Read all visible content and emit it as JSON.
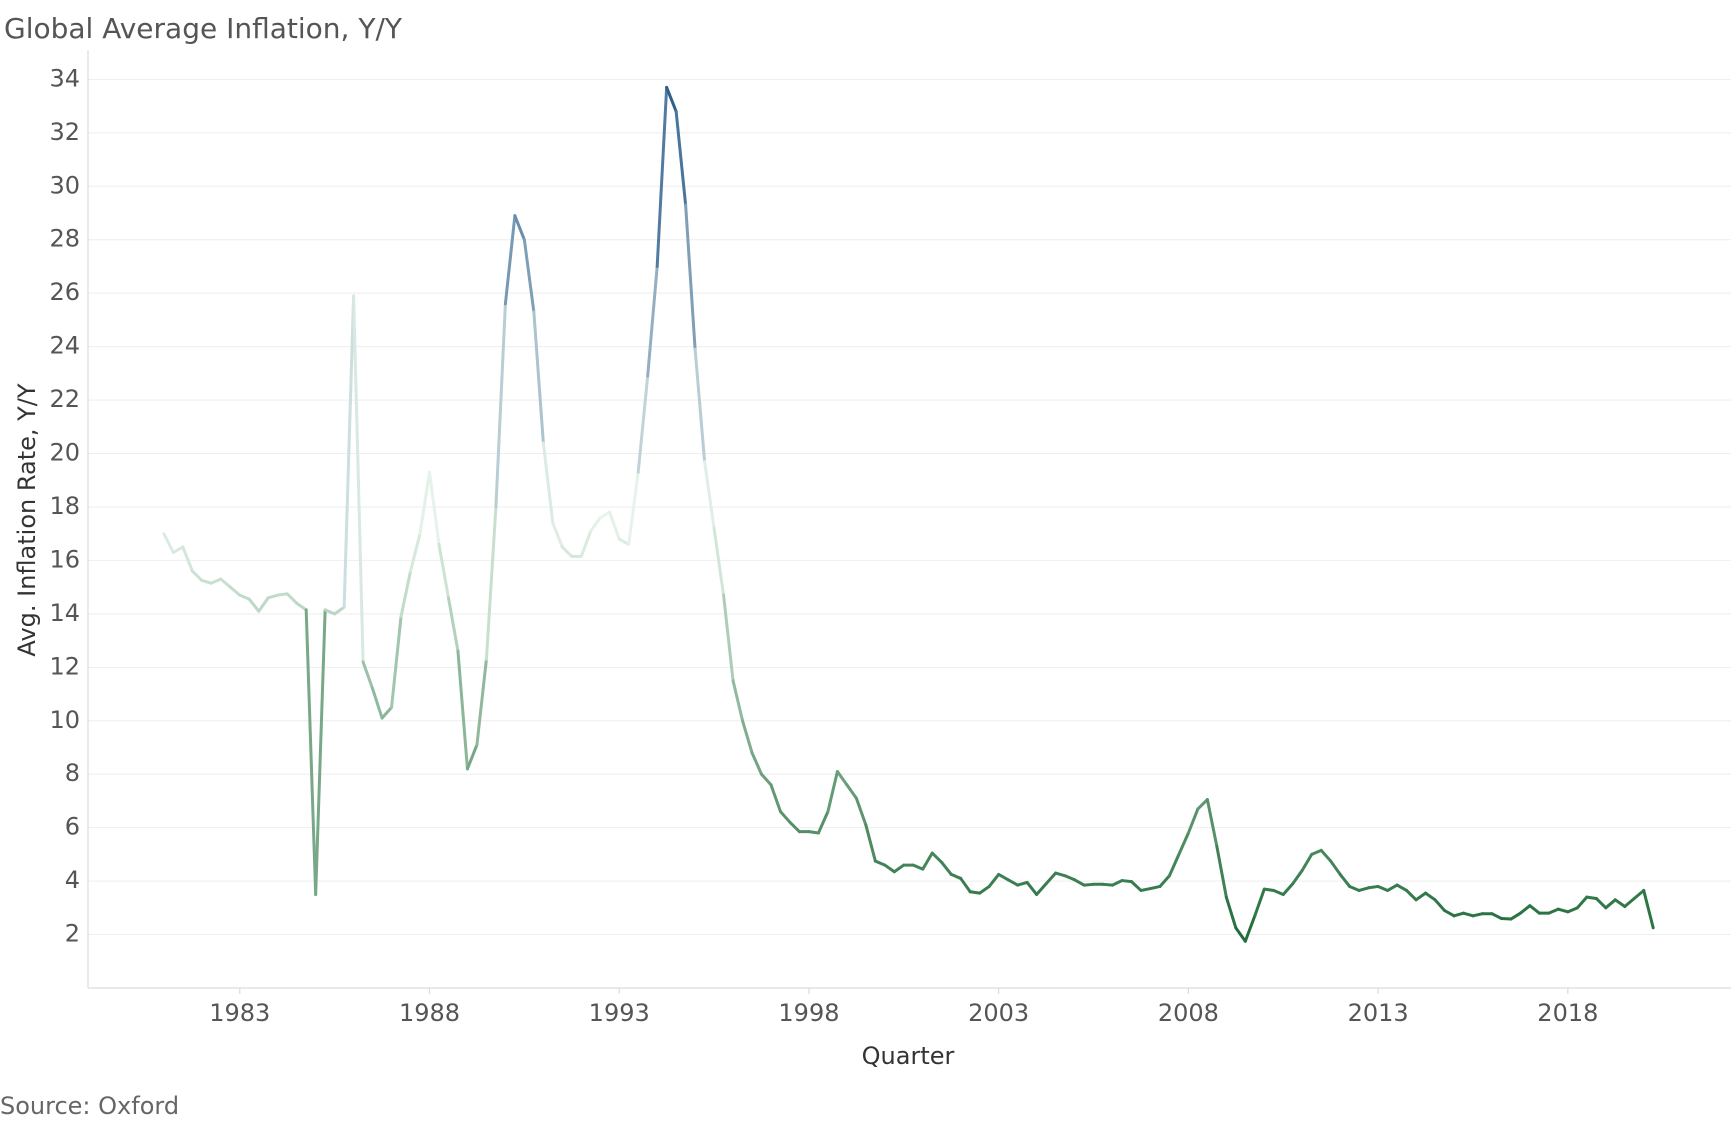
{
  "chart_data": {
    "type": "line",
    "title": "Global Average Inflation, Y/Y",
    "x_label": "Quarter",
    "y_label": "Avg. Inflation Rate, Y/Y",
    "source": "Source: Oxford",
    "x": [
      1981,
      1981.25,
      1981.5,
      1981.75,
      1982,
      1982.25,
      1982.5,
      1982.75,
      1983,
      1983.25,
      1983.5,
      1983.75,
      1984,
      1984.25,
      1984.5,
      1984.75,
      1985,
      1985.25,
      1985.5,
      1985.75,
      1986,
      1986.25,
      1986.5,
      1986.75,
      1987,
      1987.25,
      1987.5,
      1987.75,
      1988,
      1988.25,
      1988.5,
      1988.75,
      1989,
      1989.25,
      1989.5,
      1989.75,
      1990,
      1990.25,
      1990.5,
      1990.75,
      1991,
      1991.25,
      1991.5,
      1991.75,
      1992,
      1992.25,
      1992.5,
      1992.75,
      1993,
      1993.25,
      1993.5,
      1993.75,
      1994,
      1994.25,
      1994.5,
      1994.75,
      1995,
      1995.25,
      1995.5,
      1995.75,
      1996,
      1996.25,
      1996.5,
      1996.75,
      1997,
      1997.25,
      1997.5,
      1997.75,
      1998,
      1998.25,
      1998.5,
      1998.75,
      1999,
      1999.25,
      1999.5,
      1999.75,
      2000,
      2000.25,
      2000.5,
      2000.75,
      2001,
      2001.25,
      2001.5,
      2001.75,
      2002,
      2002.25,
      2002.5,
      2002.75,
      2003,
      2003.25,
      2003.5,
      2003.75,
      2004,
      2004.25,
      2004.5,
      2004.75,
      2005,
      2005.25,
      2005.5,
      2005.75,
      2006,
      2006.25,
      2006.5,
      2006.75,
      2007,
      2007.25,
      2007.5,
      2007.75,
      2008,
      2008.25,
      2008.5,
      2008.75,
      2009,
      2009.25,
      2009.5,
      2009.75,
      2010,
      2010.25,
      2010.5,
      2010.75,
      2011,
      2011.25,
      2011.5,
      2011.75,
      2012,
      2012.25,
      2012.5,
      2012.75,
      2013,
      2013.25,
      2013.5,
      2013.75,
      2014,
      2014.25,
      2014.5,
      2014.75,
      2015,
      2015.25,
      2015.5,
      2015.75,
      2016,
      2016.25,
      2016.5,
      2016.75,
      2017,
      2017.25,
      2017.5,
      2017.75,
      2018,
      2018.25,
      2018.5,
      2018.75,
      2019,
      2019.25,
      2019.5,
      2019.75,
      2020,
      2020.25
    ],
    "values": [
      17.0,
      16.3,
      16.5,
      15.6,
      15.25,
      15.15,
      15.3,
      15.0,
      14.7,
      14.55,
      14.1,
      14.6,
      14.7,
      14.75,
      14.4,
      14.15,
      3.5,
      14.15,
      14.0,
      14.25,
      25.9,
      12.2,
      11.2,
      10.1,
      10.5,
      13.9,
      15.6,
      17.0,
      19.3,
      16.6,
      14.6,
      12.6,
      8.2,
      9.1,
      12.3,
      18.0,
      25.6,
      28.9,
      28.0,
      25.3,
      20.4,
      17.4,
      16.5,
      16.15,
      16.15,
      17.1,
      17.6,
      17.8,
      16.8,
      16.6,
      19.3,
      22.9,
      27.0,
      33.7,
      32.8,
      29.3,
      23.9,
      19.7,
      17.2,
      14.7,
      11.5,
      10.0,
      8.8,
      8.0,
      7.6,
      6.6,
      6.2,
      5.85,
      5.85,
      5.8,
      6.6,
      8.1,
      7.6,
      7.1,
      6.1,
      4.75,
      4.6,
      4.35,
      4.6,
      4.6,
      4.45,
      5.05,
      4.7,
      4.25,
      4.1,
      3.6,
      3.55,
      3.8,
      4.25,
      4.05,
      3.85,
      3.95,
      3.5,
      3.9,
      4.3,
      4.2,
      4.05,
      3.85,
      3.88,
      3.88,
      3.85,
      4.02,
      3.98,
      3.65,
      3.72,
      3.8,
      4.2,
      5.0,
      5.8,
      6.7,
      7.05,
      5.3,
      3.4,
      2.25,
      1.75,
      2.7,
      3.7,
      3.65,
      3.5,
      3.9,
      4.4,
      5.0,
      5.15,
      4.75,
      4.25,
      3.8,
      3.65,
      3.75,
      3.8,
      3.65,
      3.85,
      3.65,
      3.3,
      3.55,
      3.3,
      2.9,
      2.7,
      2.8,
      2.7,
      2.78,
      2.78,
      2.6,
      2.58,
      2.8,
      3.08,
      2.8,
      2.8,
      2.95,
      2.85,
      3.0,
      3.4,
      3.35,
      3.0,
      3.3,
      3.05,
      3.35,
      3.65,
      2.25
    ],
    "color_scale": [
      "#1f6b38",
      "#e8f5ec",
      "#2b5b8c"
    ],
    "xlim": [
      1979,
      2022.3
    ],
    "xticks": [
      1983,
      1988,
      1993,
      1998,
      2003,
      2008,
      2013,
      2018
    ],
    "ylim": [
      0,
      35.1
    ],
    "yticks": [
      2,
      4,
      6,
      8,
      10,
      12,
      14,
      16,
      18,
      20,
      22,
      24,
      26,
      28,
      30,
      32,
      34
    ],
    "grid": true
  }
}
